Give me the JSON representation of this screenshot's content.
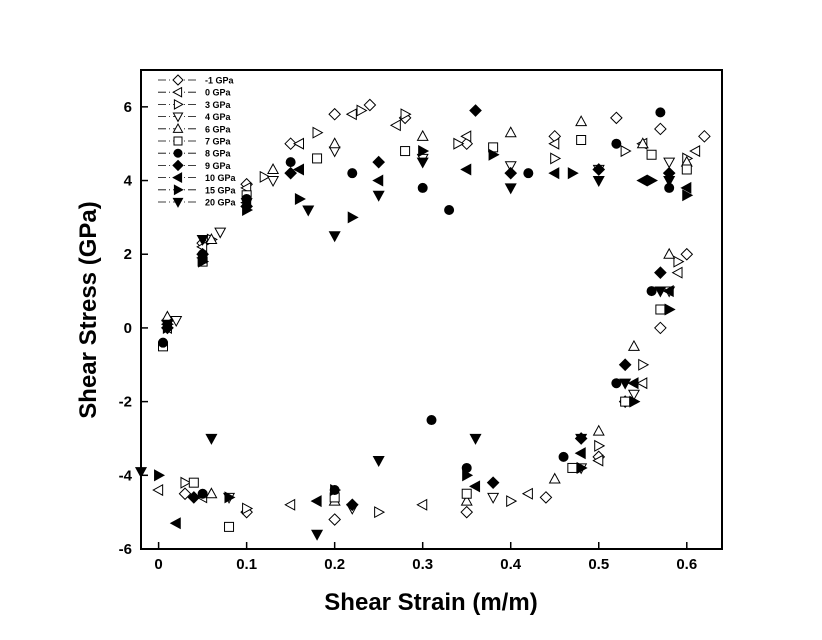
{
  "chart_data": {
    "type": "scatter",
    "title": "",
    "xlabel": "Shear Strain (m/m)",
    "ylabel": "Shear Stress (GPa)",
    "xlim": [
      -0.02,
      0.64
    ],
    "ylim": [
      -6,
      7
    ],
    "x_ticks": [
      0,
      0.1,
      0.2,
      0.3,
      0.4,
      0.5,
      0.6
    ],
    "x_tick_labels": [
      "0",
      "0.1",
      "0.2",
      "0.3",
      "0.4",
      "0.5",
      "0.6"
    ],
    "y_ticks": [
      -6,
      -4,
      -2,
      0,
      2,
      4,
      6
    ],
    "y_tick_labels": [
      "-6",
      "-4",
      "-2",
      "0",
      "2",
      "4",
      "6"
    ],
    "grid": false,
    "legend_position": "top-left",
    "series": [
      {
        "name": "-1 GPa",
        "marker": "diamond-open",
        "color": "#000000",
        "points": [
          [
            0.01,
            0.2
          ],
          [
            0.05,
            2.3
          ],
          [
            0.1,
            3.9
          ],
          [
            0.15,
            5.0
          ],
          [
            0.2,
            5.8
          ],
          [
            0.24,
            6.05
          ],
          [
            0.28,
            5.7
          ],
          [
            0.35,
            5.0
          ],
          [
            0.45,
            5.2
          ],
          [
            0.52,
            5.7
          ],
          [
            0.57,
            5.4
          ],
          [
            0.62,
            5.2
          ],
          [
            0.6,
            2.0
          ],
          [
            0.57,
            0.0
          ],
          [
            0.53,
            -2.0
          ],
          [
            0.5,
            -3.5
          ],
          [
            0.44,
            -4.6
          ],
          [
            0.35,
            -5.0
          ],
          [
            0.2,
            -5.2
          ],
          [
            0.1,
            -5.0
          ],
          [
            0.03,
            -4.5
          ]
        ]
      },
      {
        "name": "0 GPa",
        "marker": "triangle-left-open",
        "color": "#000000",
        "points": [
          [
            0.01,
            0.0
          ],
          [
            0.05,
            2.2
          ],
          [
            0.1,
            3.8
          ],
          [
            0.16,
            5.0
          ],
          [
            0.22,
            5.8
          ],
          [
            0.27,
            5.5
          ],
          [
            0.35,
            5.2
          ],
          [
            0.45,
            5.0
          ],
          [
            0.55,
            5.0
          ],
          [
            0.61,
            4.8
          ],
          [
            0.59,
            1.5
          ],
          [
            0.55,
            -1.5
          ],
          [
            0.5,
            -3.6
          ],
          [
            0.42,
            -4.5
          ],
          [
            0.3,
            -4.8
          ],
          [
            0.15,
            -4.8
          ],
          [
            0.05,
            -4.6
          ],
          [
            0.0,
            -4.4
          ]
        ]
      },
      {
        "name": "3 GPa",
        "marker": "triangle-right-open",
        "color": "#000000",
        "points": [
          [
            0.01,
            0.1
          ],
          [
            0.06,
            2.4
          ],
          [
            0.12,
            4.1
          ],
          [
            0.18,
            5.3
          ],
          [
            0.23,
            5.9
          ],
          [
            0.28,
            5.8
          ],
          [
            0.34,
            5.0
          ],
          [
            0.45,
            4.6
          ],
          [
            0.53,
            4.8
          ],
          [
            0.6,
            4.6
          ],
          [
            0.59,
            1.8
          ],
          [
            0.55,
            -1.0
          ],
          [
            0.5,
            -3.2
          ],
          [
            0.4,
            -4.7
          ],
          [
            0.25,
            -5.0
          ],
          [
            0.1,
            -4.9
          ],
          [
            0.03,
            -4.2
          ]
        ]
      },
      {
        "name": "4 GPa",
        "marker": "triangle-down-open",
        "color": "#000000",
        "points": [
          [
            0.02,
            0.2
          ],
          [
            0.07,
            2.6
          ],
          [
            0.13,
            4.0
          ],
          [
            0.2,
            4.8
          ],
          [
            0.3,
            4.6
          ],
          [
            0.4,
            4.4
          ],
          [
            0.5,
            4.3
          ],
          [
            0.58,
            4.5
          ],
          [
            0.58,
            1.0
          ],
          [
            0.54,
            -1.8
          ],
          [
            0.48,
            -3.8
          ],
          [
            0.38,
            -4.6
          ],
          [
            0.22,
            -4.9
          ],
          [
            0.08,
            -4.6
          ]
        ]
      },
      {
        "name": "6 GPa",
        "marker": "triangle-up-open",
        "color": "#000000",
        "points": [
          [
            0.01,
            0.3
          ],
          [
            0.06,
            2.4
          ],
          [
            0.13,
            4.3
          ],
          [
            0.2,
            5.0
          ],
          [
            0.3,
            5.2
          ],
          [
            0.4,
            5.3
          ],
          [
            0.48,
            5.6
          ],
          [
            0.55,
            5.0
          ],
          [
            0.6,
            4.5
          ],
          [
            0.58,
            2.0
          ],
          [
            0.54,
            -0.5
          ],
          [
            0.5,
            -2.8
          ],
          [
            0.45,
            -4.1
          ],
          [
            0.35,
            -4.7
          ],
          [
            0.2,
            -4.7
          ],
          [
            0.06,
            -4.5
          ]
        ]
      },
      {
        "name": "7 GPa",
        "marker": "square-open",
        "color": "#000000",
        "points": [
          [
            0.005,
            -0.5
          ],
          [
            0.05,
            1.8
          ],
          [
            0.1,
            3.6
          ],
          [
            0.18,
            4.6
          ],
          [
            0.28,
            4.8
          ],
          [
            0.38,
            4.9
          ],
          [
            0.48,
            5.1
          ],
          [
            0.56,
            4.7
          ],
          [
            0.6,
            4.3
          ],
          [
            0.57,
            0.5
          ],
          [
            0.53,
            -2.0
          ],
          [
            0.47,
            -3.8
          ],
          [
            0.35,
            -4.5
          ],
          [
            0.2,
            -4.6
          ],
          [
            0.08,
            -5.4
          ],
          [
            0.04,
            -4.2
          ]
        ]
      },
      {
        "name": "8 GPa",
        "marker": "circle-filled",
        "color": "#000000",
        "points": [
          [
            0.005,
            -0.4
          ],
          [
            0.05,
            2.0
          ],
          [
            0.1,
            3.5
          ],
          [
            0.15,
            4.5
          ],
          [
            0.22,
            4.2
          ],
          [
            0.3,
            3.8
          ],
          [
            0.33,
            3.2
          ],
          [
            0.42,
            4.2
          ],
          [
            0.52,
            5.0
          ],
          [
            0.57,
            5.85
          ],
          [
            0.58,
            3.8
          ],
          [
            0.56,
            1.0
          ],
          [
            0.52,
            -1.5
          ],
          [
            0.46,
            -3.5
          ],
          [
            0.35,
            -3.8
          ],
          [
            0.31,
            -2.5
          ],
          [
            0.2,
            -4.4
          ],
          [
            0.05,
            -4.5
          ]
        ]
      },
      {
        "name": "9 GPa",
        "marker": "diamond-filled",
        "color": "#000000",
        "points": [
          [
            0.01,
            0.0
          ],
          [
            0.05,
            2.0
          ],
          [
            0.1,
            3.3
          ],
          [
            0.15,
            4.2
          ],
          [
            0.25,
            4.5
          ],
          [
            0.36,
            5.9
          ],
          [
            0.4,
            4.2
          ],
          [
            0.5,
            4.3
          ],
          [
            0.58,
            4.2
          ],
          [
            0.57,
            1.5
          ],
          [
            0.53,
            -1.0
          ],
          [
            0.48,
            -3.0
          ],
          [
            0.38,
            -4.2
          ],
          [
            0.22,
            -4.8
          ],
          [
            0.04,
            -4.6
          ]
        ]
      },
      {
        "name": "10 GPa",
        "marker": "triangle-left-filled",
        "color": "#000000",
        "points": [
          [
            0.01,
            0.1
          ],
          [
            0.05,
            1.9
          ],
          [
            0.1,
            3.4
          ],
          [
            0.16,
            4.3
          ],
          [
            0.25,
            4.0
          ],
          [
            0.35,
            4.3
          ],
          [
            0.45,
            4.2
          ],
          [
            0.55,
            4.0
          ],
          [
            0.6,
            3.8
          ],
          [
            0.58,
            1.0
          ],
          [
            0.54,
            -1.5
          ],
          [
            0.48,
            -3.4
          ],
          [
            0.36,
            -4.3
          ],
          [
            0.18,
            -4.7
          ],
          [
            0.02,
            -5.3
          ]
        ]
      },
      {
        "name": "15 GPa",
        "marker": "triangle-right-filled",
        "color": "#000000",
        "points": [
          [
            0.01,
            0.0
          ],
          [
            0.05,
            1.8
          ],
          [
            0.1,
            3.2
          ],
          [
            0.16,
            3.5
          ],
          [
            0.22,
            3.0
          ],
          [
            0.3,
            4.8
          ],
          [
            0.38,
            4.7
          ],
          [
            0.47,
            4.2
          ],
          [
            0.56,
            4.0
          ],
          [
            0.6,
            3.6
          ],
          [
            0.58,
            0.5
          ],
          [
            0.54,
            -2.0
          ],
          [
            0.48,
            -3.8
          ],
          [
            0.35,
            -4.0
          ],
          [
            0.2,
            -4.4
          ],
          [
            0.08,
            -4.6
          ],
          [
            0.0,
            -4.0
          ]
        ]
      },
      {
        "name": "20 GPa",
        "marker": "triangle-down-filled",
        "color": "#000000",
        "points": [
          [
            0.01,
            0.1
          ],
          [
            0.05,
            2.4
          ],
          [
            0.1,
            3.4
          ],
          [
            0.17,
            3.2
          ],
          [
            0.2,
            2.5
          ],
          [
            0.25,
            3.6
          ],
          [
            0.3,
            4.5
          ],
          [
            0.4,
            3.8
          ],
          [
            0.5,
            4.0
          ],
          [
            0.58,
            4.0
          ],
          [
            0.57,
            1.0
          ],
          [
            0.53,
            -1.5
          ],
          [
            0.48,
            -3.0
          ],
          [
            0.36,
            -3.0
          ],
          [
            0.25,
            -3.6
          ],
          [
            0.18,
            -5.6
          ],
          [
            0.06,
            -3.0
          ],
          [
            -0.02,
            -3.9
          ]
        ]
      }
    ]
  }
}
